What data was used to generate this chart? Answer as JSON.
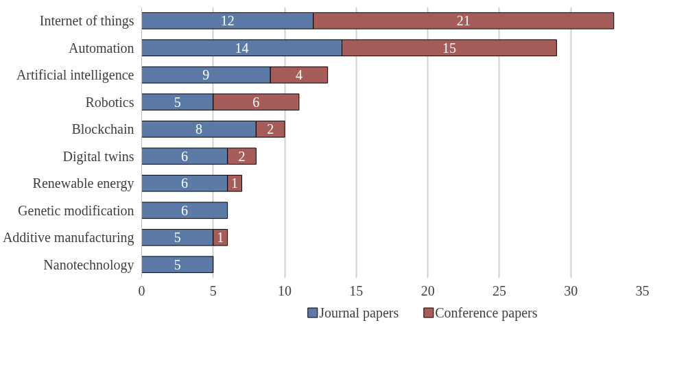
{
  "chart_data": {
    "type": "bar",
    "orientation": "horizontal",
    "stacked": true,
    "categories": [
      "Internet of things",
      "Automation",
      "Artificial intelligence",
      "Robotics",
      "Blockchain",
      "Digital twins",
      "Renewable energy",
      "Genetic modification",
      "Additive manufacturing",
      "Nanotechnology"
    ],
    "series": [
      {
        "name": "Journal papers",
        "color": "#5b7aa6",
        "values": [
          12,
          14,
          9,
          5,
          8,
          6,
          6,
          6,
          5,
          5
        ]
      },
      {
        "name": "Conference papers",
        "color": "#a65d5a",
        "values": [
          21,
          15,
          4,
          6,
          2,
          2,
          1,
          null,
          1,
          null
        ]
      }
    ],
    "xlim": [
      0,
      35
    ],
    "xticks": [
      0,
      5,
      10,
      15,
      20,
      25,
      30,
      35
    ],
    "grid": "x",
    "legend": "bottom",
    "data_labels": true
  }
}
